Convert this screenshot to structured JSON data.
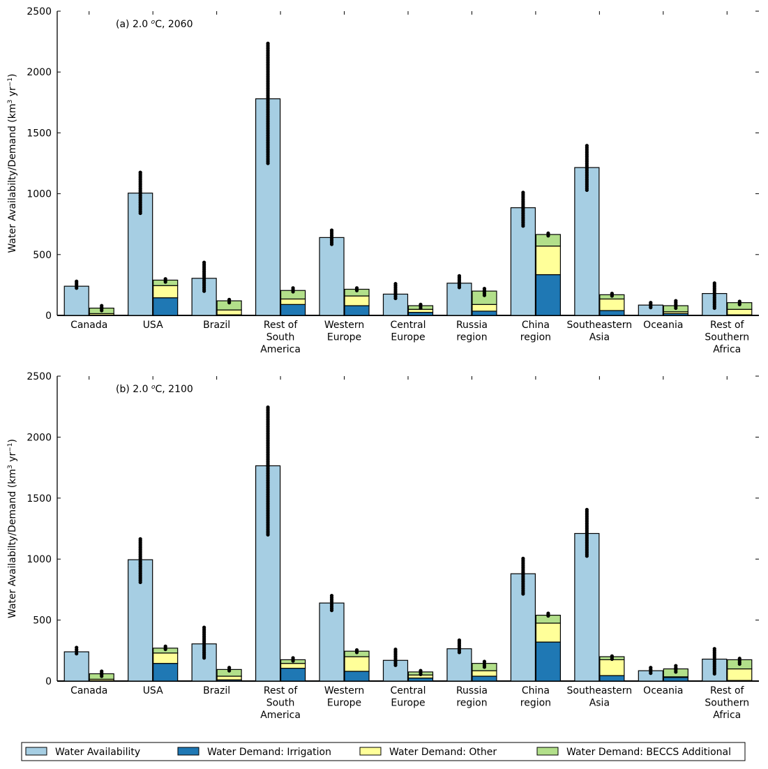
{
  "chart_data": {
    "type": "bar",
    "subtype": "grouped-stacked-with-scatter",
    "categories": [
      "Canada",
      "USA",
      "Brazil",
      "Rest of South America",
      "Western Europe",
      "Central Europe",
      "Russia region",
      "China region",
      "Southeastern Asia",
      "Oceania",
      "Rest of Southern Africa"
    ],
    "category_labels": [
      [
        "Canada"
      ],
      [
        "USA"
      ],
      [
        "Brazil"
      ],
      [
        "Rest of",
        "South",
        "America"
      ],
      [
        "Western",
        "Europe"
      ],
      [
        "Central",
        "Europe"
      ],
      [
        "Russia",
        "region"
      ],
      [
        "China",
        "region"
      ],
      [
        "Southeastern",
        "Asia"
      ],
      [
        "Oceania"
      ],
      [
        "Rest of",
        "Southern",
        "Africa"
      ]
    ],
    "ylabel": "Water Availabilty/Demand (km³ yr⁻¹)",
    "ylabel_parts": {
      "main": "Water Availabilty/Demand (km",
      "sup1": "3",
      "mid": " yr",
      "sup2": "−1",
      "end": ")"
    },
    "ylim": [
      0,
      2500
    ],
    "yticks": [
      0,
      500,
      1000,
      1500,
      2000,
      2500
    ],
    "grid": false,
    "legend": {
      "position": "bottom",
      "entries": [
        {
          "key": "availability",
          "label": "Water Availability",
          "color": "#a6cee3"
        },
        {
          "key": "irrigation",
          "label": "Water Demand: Irrigation",
          "color": "#1f78b4"
        },
        {
          "key": "other",
          "label": "Water Demand: Other",
          "color": "#ffff99"
        },
        {
          "key": "beccs",
          "label": "Water Demand: BECCS Additional",
          "color": "#b2df8a"
        }
      ]
    },
    "panels": [
      {
        "title": "(a) 2.0 °C, 2060",
        "title_parts": {
          "prefix": "(a) 2.0 ",
          "degree": "o",
          "suffix": "C, 2060"
        },
        "availability": [
          240,
          1005,
          305,
          1780,
          640,
          175,
          265,
          885,
          1215,
          85,
          180
        ],
        "irrigation": [
          3,
          145,
          5,
          90,
          80,
          25,
          35,
          335,
          40,
          15,
          5
        ],
        "other": [
          12,
          100,
          40,
          45,
          80,
          25,
          55,
          235,
          95,
          15,
          45
        ],
        "beccs": [
          45,
          45,
          75,
          70,
          55,
          30,
          110,
          95,
          35,
          50,
          55
        ],
        "availability_scatter_range": [
          [
            225,
            280
          ],
          [
            840,
            1175
          ],
          [
            200,
            435
          ],
          [
            1250,
            2235
          ],
          [
            585,
            700
          ],
          [
            140,
            260
          ],
          [
            230,
            325
          ],
          [
            735,
            1010
          ],
          [
            1030,
            1395
          ],
          [
            65,
            105
          ],
          [
            60,
            265
          ]
        ],
        "demand_scatter_range": [
          [
            40,
            80
          ],
          [
            275,
            300
          ],
          [
            105,
            130
          ],
          [
            195,
            225
          ],
          [
            205,
            225
          ],
          [
            60,
            90
          ],
          [
            165,
            220
          ],
          [
            655,
            675
          ],
          [
            160,
            180
          ],
          [
            60,
            120
          ],
          [
            90,
            115
          ]
        ]
      },
      {
        "title": "(b) 2.0 °C, 2100",
        "title_parts": {
          "prefix": "(b) 2.0 ",
          "degree": "o",
          "suffix": "C, 2100"
        },
        "availability": [
          240,
          995,
          305,
          1765,
          640,
          170,
          265,
          880,
          1210,
          85,
          180
        ],
        "irrigation": [
          3,
          145,
          10,
          105,
          80,
          25,
          40,
          320,
          45,
          30,
          5
        ],
        "other": [
          12,
          85,
          30,
          40,
          120,
          25,
          45,
          155,
          130,
          5,
          95
        ],
        "beccs": [
          45,
          40,
          55,
          30,
          45,
          25,
          60,
          65,
          25,
          65,
          75
        ],
        "availability_scatter_range": [
          [
            225,
            275
          ],
          [
            810,
            1165
          ],
          [
            190,
            440
          ],
          [
            1200,
            2245
          ],
          [
            580,
            700
          ],
          [
            130,
            260
          ],
          [
            235,
            335
          ],
          [
            715,
            1005
          ],
          [
            1025,
            1405
          ],
          [
            65,
            110
          ],
          [
            60,
            265
          ]
        ],
        "demand_scatter_range": [
          [
            40,
            80
          ],
          [
            260,
            285
          ],
          [
            85,
            110
          ],
          [
            165,
            190
          ],
          [
            235,
            255
          ],
          [
            55,
            85
          ],
          [
            115,
            160
          ],
          [
            535,
            555
          ],
          [
            180,
            205
          ],
          [
            75,
            125
          ],
          [
            140,
            185
          ]
        ]
      }
    ]
  }
}
